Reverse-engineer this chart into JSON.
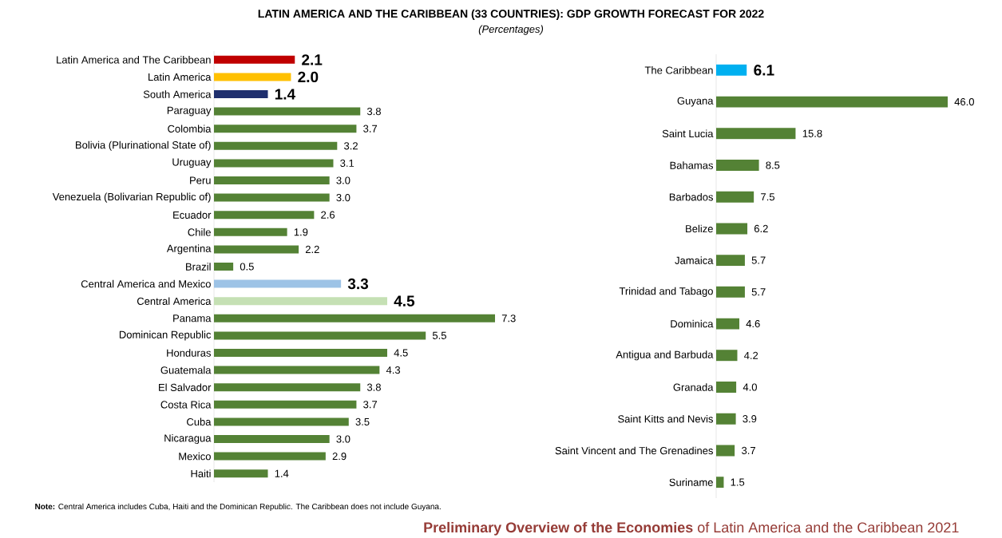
{
  "chart_data": [
    {
      "type": "bar",
      "orientation": "horizontal",
      "title": "LATIN AMERICA AND THE CARIBBEAN (33 COUNTRIES): GDP GROWTH FORECAST FOR 2022",
      "subtitle": "(Percentages)",
      "categories": [
        "Latin America and The Caribbean",
        "Latin America",
        "South America",
        "Paraguay",
        "Colombia",
        "Bolivia (Plurinational State of)",
        "Uruguay",
        "Peru",
        "Venezuela (Bolivarian Republic of)",
        "Ecuador",
        "Chile",
        "Argentina",
        "Brazil",
        "Central America and Mexico",
        "Central America",
        "Panama",
        "Dominican Republic",
        "Honduras",
        "Guatemala",
        "El Salvador",
        "Costa Rica",
        "Cuba",
        "Nicaragua",
        "Mexico",
        "Haiti"
      ],
      "values": [
        2.1,
        2.0,
        1.4,
        3.8,
        3.7,
        3.2,
        3.1,
        3.0,
        3.0,
        2.6,
        1.9,
        2.2,
        0.5,
        3.3,
        4.5,
        7.3,
        5.5,
        4.5,
        4.3,
        3.8,
        3.7,
        3.5,
        3.0,
        2.9,
        1.4
      ],
      "value_labels": [
        "**2.1**",
        "**2.0**",
        "**1.4**",
        "3.8",
        "3.7",
        "3.2",
        "3.1",
        "3.0",
        "3.0",
        "2.6",
        "1.9",
        "2.2",
        "0.5",
        "**3.3**",
        "**4.5**",
        "7.3",
        "5.5",
        "4.5",
        "4.3",
        "3.8",
        "3.7",
        "3.5",
        "3.0",
        "2.9",
        "1.4"
      ],
      "colors": [
        "#c00000",
        "#ffc000",
        "#1f2f6e",
        "#548235",
        "#548235",
        "#548235",
        "#548235",
        "#548235",
        "#548235",
        "#548235",
        "#548235",
        "#548235",
        "#548235",
        "#9dc3e6",
        "#c5e0b4",
        "#548235",
        "#548235",
        "#548235",
        "#548235",
        "#548235",
        "#548235",
        "#548235",
        "#548235",
        "#548235",
        "#548235"
      ],
      "tick_labels": "y",
      "annotations": [
        "**Note:** Central America includes Cuba, Haiti and the Dominican Republic. The Caribbean does not include Guyana.",
        "**Preliminary Overview of the Economies** of Latin America and the Caribbean 2021"
      ]
    },
    {
      "type": "bar",
      "orientation": "horizontal",
      "categories": [
        "The Caribbean",
        "Guyana",
        "Saint Lucia",
        "Bahamas",
        "Barbados",
        "Belize",
        "Jamaica",
        "Trinidad and Tabago",
        "Dominica",
        "Antigua and Barbuda",
        "Granada",
        "Saint Kitts and Nevis",
        "Saint Vincent and The Grenadines",
        "Suriname"
      ],
      "values": [
        6.1,
        46.0,
        15.8,
        8.5,
        7.5,
        6.2,
        5.7,
        5.7,
        4.6,
        4.2,
        4.0,
        3.9,
        3.7,
        1.5
      ],
      "value_labels": [
        "**6.1**",
        "46.0",
        "15.8",
        "8.5",
        "7.5",
        "6.2",
        "5.7",
        "5.7",
        "4.6",
        "4.2",
        "4.0",
        "3.9",
        "3.7",
        "1.5"
      ],
      "colors": [
        "#00b0f0",
        "#548235",
        "#548235",
        "#548235",
        "#548235",
        "#548235",
        "#548235",
        "#548235",
        "#548235",
        "#548235",
        "#548235",
        "#548235",
        "#548235",
        "#548235"
      ],
      "tick_labels": "y"
    }
  ]
}
